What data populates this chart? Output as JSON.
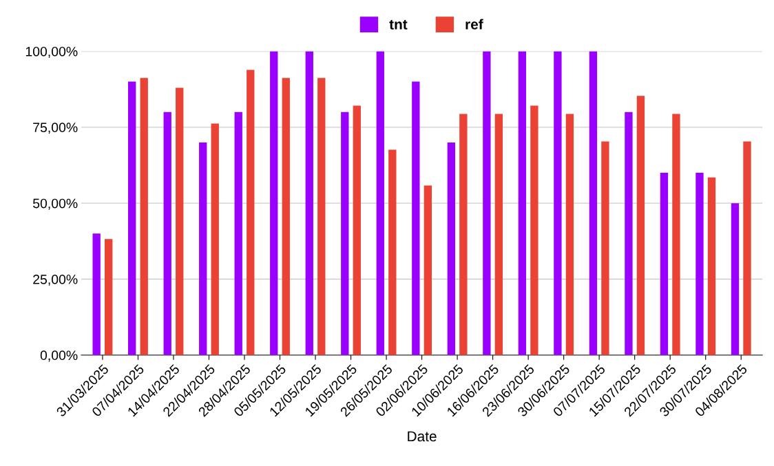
{
  "chart_data": {
    "type": "bar",
    "xlabel": "Date",
    "categories": [
      "31/03/2025",
      "07/04/2025",
      "14/04/2025",
      "22/04/2025",
      "28/04/2025",
      "05/05/2025",
      "12/05/2025",
      "19/05/2025",
      "26/05/2025",
      "02/06/2025",
      "10/06/2025",
      "16/06/2025",
      "23/06/2025",
      "30/06/2025",
      "07/07/2025",
      "15/07/2025",
      "22/07/2025",
      "30/07/2025",
      "04/08/2025"
    ],
    "series": [
      {
        "name": "tnt",
        "color": "#9900ff",
        "values": [
          40,
          90,
          80,
          70,
          80,
          100,
          100,
          80,
          100,
          90,
          70,
          100,
          100,
          100,
          100,
          80,
          60,
          60,
          50
        ]
      },
      {
        "name": "ref",
        "color": "#ea4335",
        "values": [
          38.2,
          91.2,
          88.0,
          76.2,
          93.9,
          91.2,
          91.2,
          82.1,
          67.6,
          55.8,
          79.4,
          79.4,
          82.1,
          79.4,
          70.3,
          85.3,
          79.4,
          58.5,
          70.3
        ]
      }
    ],
    "ylim": [
      0,
      100
    ],
    "yticks": [
      {
        "value": 0,
        "label": "0,00%"
      },
      {
        "value": 25,
        "label": "25,00%"
      },
      {
        "value": 50,
        "label": "50,00%"
      },
      {
        "value": 75,
        "label": "75,00%"
      },
      {
        "value": 100,
        "label": "100,00%"
      }
    ],
    "grid": "y",
    "legend": "top"
  }
}
